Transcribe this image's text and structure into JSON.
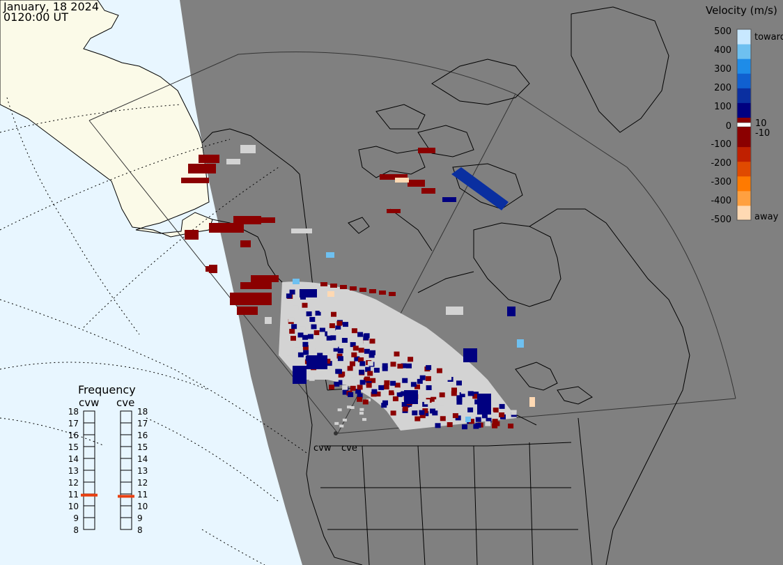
{
  "header": {
    "date": "January, 18 2024",
    "time": "0120:00 UT"
  },
  "legend": {
    "title": "Velocity (m/s)",
    "ticks": [
      "500",
      "400",
      "300",
      "200",
      "100",
      "10",
      "0",
      "-10",
      "-100",
      "-200",
      "-300",
      "-400",
      "-500"
    ],
    "toward_label": "toward",
    "away_label": "away",
    "colors": [
      "#ffd9b3",
      "#ffa040",
      "#ff7a00",
      "#e04a00",
      "#c02000",
      "#8b0000",
      "#8b0000",
      "#000080",
      "#0a2fa0",
      "#1060d0",
      "#1e8ce8",
      "#6ec0f0",
      "#c8e8ff"
    ]
  },
  "frequency": {
    "title": "Frequency",
    "stations": [
      {
        "name": "cvw",
        "current_mhz": 10.9
      },
      {
        "name": "cve",
        "current_mhz": 10.8
      }
    ],
    "scale": [
      "18",
      "17",
      "16",
      "15",
      "14",
      "13",
      "12",
      "11",
      "10",
      "9",
      "8"
    ],
    "scale_min": 8,
    "scale_max": 18,
    "marker_color": "#e84010"
  },
  "radars": [
    {
      "name": "cvw"
    },
    {
      "name": "cve"
    }
  ],
  "colors": {
    "night_side": "#808080",
    "day_ocean": "#e8f6ff",
    "day_land": "#fbfae8",
    "ground_scatter": "#d3d3d3"
  }
}
